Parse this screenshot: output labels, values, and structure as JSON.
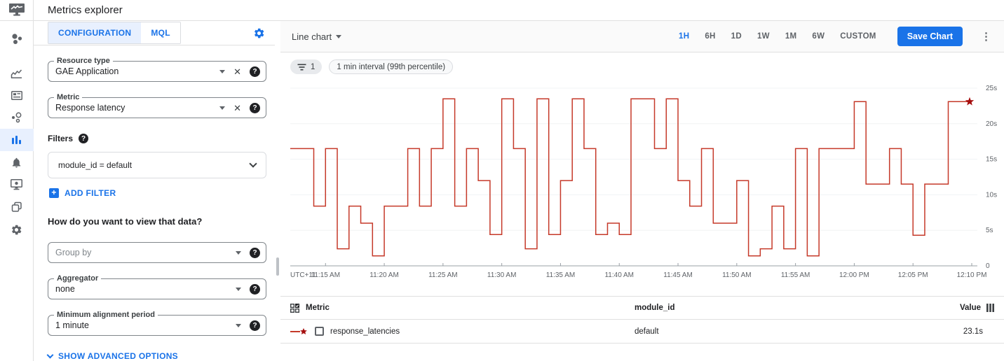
{
  "app": {
    "title": "Metrics explorer"
  },
  "nav": {
    "items": [
      {
        "icon": "monitoring-overview-icon"
      },
      {
        "icon": "dashboards-icon"
      },
      {
        "icon": "services-card-icon"
      },
      {
        "icon": "integrations-icon"
      },
      {
        "icon": "metrics-explorer-icon",
        "active": true
      },
      {
        "icon": "alerting-bell-icon"
      },
      {
        "icon": "uptime-checks-icon"
      },
      {
        "icon": "groups-icon"
      },
      {
        "icon": "settings-gear-icon"
      }
    ]
  },
  "config_panel": {
    "tabs": [
      {
        "label": "CONFIGURATION",
        "active": true
      },
      {
        "label": "MQL",
        "active": false
      }
    ],
    "resource_type": {
      "label": "Resource type",
      "value": "GAE Application"
    },
    "metric": {
      "label": "Metric",
      "value": "Response latency"
    },
    "filters_label": "Filters",
    "filter_value": "module_id = default",
    "add_filter_label": "ADD FILTER",
    "view_heading": "How do you want to view that data?",
    "group_by": {
      "placeholder": "Group by"
    },
    "aggregator": {
      "label": "Aggregator",
      "value": "none"
    },
    "min_alignment_period": {
      "label": "Minimum alignment period",
      "value": "1 minute"
    },
    "advanced_label": "SHOW ADVANCED OPTIONS"
  },
  "chart_panel": {
    "chart_type_label": "Line chart",
    "time_ranges": [
      "1H",
      "6H",
      "1D",
      "1W",
      "1M",
      "6W",
      "CUSTOM"
    ],
    "active_range": "1H",
    "save_button_label": "Save Chart",
    "chips": [
      {
        "icon": "filter-list-icon",
        "label": "1"
      },
      {
        "label": "1 min interval (99th percentile)"
      }
    ]
  },
  "chart_data": {
    "type": "line",
    "style": "step-after",
    "line_color": "#c53929",
    "marker_color": "#a50e0e",
    "grid_color": "#f1f3f4",
    "axis_color": "#9aa0a6",
    "ylim": [
      0,
      25
    ],
    "timezone_label": "UTC+11",
    "y_ticks": [
      {
        "value": 0,
        "label": "0"
      },
      {
        "value": 5,
        "label": "5s"
      },
      {
        "value": 10,
        "label": "10s"
      },
      {
        "value": 15,
        "label": "15s"
      },
      {
        "value": 20,
        "label": "20s"
      },
      {
        "value": 25,
        "label": "25s"
      }
    ],
    "x_ticks": [
      {
        "index": 3,
        "label": "11:15 AM"
      },
      {
        "index": 8,
        "label": "11:20 AM"
      },
      {
        "index": 13,
        "label": "11:25 AM"
      },
      {
        "index": 18,
        "label": "11:30 AM"
      },
      {
        "index": 23,
        "label": "11:35 AM"
      },
      {
        "index": 28,
        "label": "11:40 AM"
      },
      {
        "index": 33,
        "label": "11:45 AM"
      },
      {
        "index": 38,
        "label": "11:50 AM"
      },
      {
        "index": 43,
        "label": "11:55 AM"
      },
      {
        "index": 48,
        "label": "12:00 PM"
      },
      {
        "index": 53,
        "label": "12:05 PM"
      },
      {
        "index": 58,
        "label": "12:10 PM"
      }
    ],
    "x": [
      "11:12 AM",
      "11:13 AM",
      "11:14 AM",
      "11:15 AM",
      "11:16 AM",
      "11:17 AM",
      "11:18 AM",
      "11:19 AM",
      "11:20 AM",
      "11:21 AM",
      "11:22 AM",
      "11:23 AM",
      "11:24 AM",
      "11:25 AM",
      "11:26 AM",
      "11:27 AM",
      "11:28 AM",
      "11:29 AM",
      "11:30 AM",
      "11:31 AM",
      "11:32 AM",
      "11:33 AM",
      "11:34 AM",
      "11:35 AM",
      "11:36 AM",
      "11:37 AM",
      "11:38 AM",
      "11:39 AM",
      "11:40 AM",
      "11:41 AM",
      "11:42 AM",
      "11:43 AM",
      "11:44 AM",
      "11:45 AM",
      "11:46 AM",
      "11:47 AM",
      "11:48 AM",
      "11:49 AM",
      "11:50 AM",
      "11:51 AM",
      "11:52 AM",
      "11:53 AM",
      "11:54 AM",
      "11:55 AM",
      "11:56 AM",
      "11:57 AM",
      "11:58 AM",
      "11:59 AM",
      "12:00 PM",
      "12:01 PM",
      "12:02 PM",
      "12:03 PM",
      "12:04 PM",
      "12:05 PM",
      "12:06 PM",
      "12:07 PM",
      "12:08 PM",
      "12:09 PM",
      "12:10 PM"
    ],
    "values": [
      16.5,
      16.5,
      8.4,
      16.5,
      2.4,
      8.4,
      6.0,
      1.4,
      8.4,
      8.4,
      16.5,
      8.4,
      16.5,
      23.5,
      8.4,
      16.5,
      12.0,
      4.4,
      23.5,
      16.5,
      2.4,
      23.5,
      4.4,
      12.0,
      23.5,
      16.5,
      4.4,
      6.0,
      4.4,
      23.5,
      23.5,
      16.5,
      23.5,
      12.0,
      8.4,
      16.5,
      6.0,
      6.0,
      12.0,
      1.4,
      2.4,
      8.4,
      2.4,
      16.5,
      1.4,
      16.5,
      16.5,
      16.5,
      23.1,
      11.5,
      11.5,
      16.5,
      11.5,
      4.3,
      11.5,
      11.5,
      23.1,
      23.1,
      23.1
    ],
    "series_name": "response_latencies",
    "latest_value": "23.1s"
  },
  "table": {
    "headers": {
      "metric": "Metric",
      "module_id": "module_id",
      "value": "Value"
    },
    "rows": [
      {
        "metric": "response_latencies",
        "module_id": "default",
        "value": "23.1s"
      }
    ]
  }
}
